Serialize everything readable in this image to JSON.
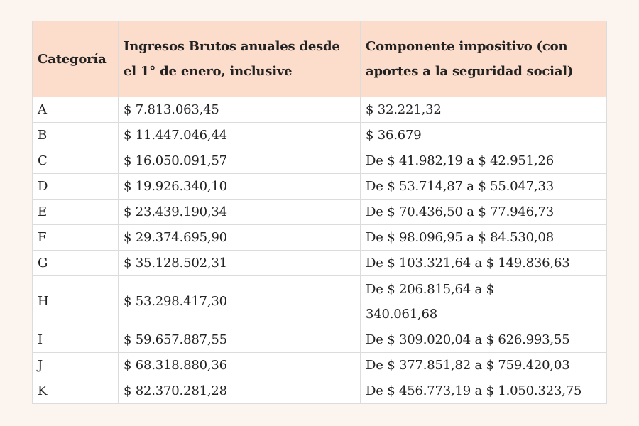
{
  "headers": [
    "Categoría",
    "Ingresos Brutos anuales desde el 1° de enero, inclusive",
    "Componente impositivo (con aportes a la seguridad social)"
  ],
  "rows": [
    {
      "category": "A",
      "income": "$ 7.813.063,45",
      "tax": "$ 32.221,32"
    },
    {
      "category": "B",
      "income": "$ 11.447.046,44",
      "tax": "$ 36.679"
    },
    {
      "category": "C",
      "income": "$ 16.050.091,57",
      "tax": "De $ 41.982,19 a $ 42.951,26"
    },
    {
      "category": "D",
      "income": "$ 19.926.340,10",
      "tax": "De $ 53.714,87 a $ 55.047,33"
    },
    {
      "category": "E",
      "income": "$ 23.439.190,34",
      "tax": "De $ 70.436,50 a $ 77.946,73"
    },
    {
      "category": "F",
      "income": "$ 29.374.695,90",
      "tax": "De $ 98.096,95 a $ 84.530,08"
    },
    {
      "category": "G",
      "income": "$ 35.128.502,31",
      "tax": "De $ 103.321,64 a $ 149.836,63"
    },
    {
      "category": "H",
      "income": "$ 53.298.417,30",
      "tax": "De $ 206.815,64 a $ 340.061,68"
    },
    {
      "category": "I",
      "income": "$ 59.657.887,55",
      "tax": "De $ 309.020,04 a $ 626.993,55"
    },
    {
      "category": "J",
      "income": "$ 68.318.880,36",
      "tax": "De $ 377.851,82 a $ 759.420,03"
    },
    {
      "category": "K",
      "income": "$ 82.370.281,28",
      "tax": "De $ 456.773,19 a $ 1.050.323,75"
    }
  ]
}
